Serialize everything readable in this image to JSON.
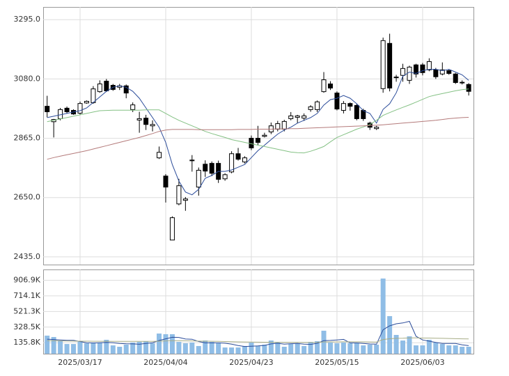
{
  "chart_data": [
    {
      "type": "candlestick",
      "open": [
        2981,
        2925,
        2936,
        2974,
        2966,
        2956,
        2993,
        2994,
        3034,
        3072,
        3057,
        3050,
        3055,
        2969,
        2931,
        2938,
        2910,
        2794,
        2728,
        2496,
        2627,
        2640,
        2786,
        2688,
        2771,
        2774,
        2774,
        2718,
        2743,
        2809,
        2779,
        2865,
        2865,
        2872,
        2888,
        2898,
        2898,
        2936,
        2941,
        2938,
        2969,
        2969,
        3034,
        3062,
        3029,
        2966,
        2991,
        2984,
        2966,
        2920,
        2900,
        3045,
        3209,
        3085,
        3093,
        3075,
        3131,
        3131,
        3113,
        3113,
        3098,
        3110,
        3098,
        3068,
        3060
      ],
      "high": [
        3019,
        2935,
        2975,
        2980,
        2970,
        2998,
        3002,
        3054,
        3075,
        3080,
        3062,
        3062,
        3060,
        2995,
        2961,
        2950,
        2930,
        2835,
        2735,
        2582,
        2718,
        2652,
        2804,
        2759,
        2785,
        2781,
        2784,
        2738,
        2818,
        2830,
        2800,
        2875,
        2910,
        2885,
        2922,
        2928,
        2932,
        2960,
        2950,
        2955,
        2985,
        3002,
        3105,
        3072,
        3035,
        3000,
        2995,
        2990,
        2972,
        2925,
        2910,
        3230,
        3244,
        3095,
        3135,
        3128,
        3135,
        3138,
        3155,
        3120,
        3140,
        3115,
        3102,
        3075,
        3065
      ],
      "low": [
        2941,
        2868,
        2930,
        2955,
        2950,
        2950,
        2990,
        2990,
        3030,
        3033,
        3037,
        3040,
        3010,
        2960,
        2885,
        2895,
        2890,
        2790,
        2632,
        2496,
        2622,
        2602,
        2744,
        2657,
        2725,
        2728,
        2703,
        2711,
        2738,
        2784,
        2774,
        2822,
        2840,
        2868,
        2880,
        2890,
        2890,
        2930,
        2920,
        2928,
        2961,
        2960,
        3030,
        3040,
        2966,
        2955,
        2965,
        2930,
        2928,
        2895,
        2895,
        3030,
        3035,
        3070,
        3070,
        3062,
        3085,
        3093,
        3108,
        3080,
        3093,
        3095,
        3062,
        3060,
        3020
      ],
      "close": [
        2961,
        2933,
        2969,
        2961,
        2953,
        2991,
        2999,
        3044,
        3062,
        3037,
        3042,
        3055,
        3029,
        2986,
        2936,
        2915,
        2915,
        2814,
        2688,
        2577,
        2693,
        2645,
        2784,
        2749,
        2746,
        2738,
        2716,
        2733,
        2809,
        2789,
        2794,
        2830,
        2850,
        2876,
        2910,
        2918,
        2926,
        2946,
        2946,
        2946,
        2979,
        2997,
        3077,
        3047,
        2971,
        2991,
        2981,
        2936,
        2936,
        2905,
        2905,
        3219,
        3047,
        3087,
        3118,
        3123,
        3098,
        3103,
        3143,
        3088,
        3113,
        3100,
        3067,
        3067,
        3035
      ],
      "up_color": "#ffffff",
      "down_color": "#000000",
      "series": [
        {
          "color": "#2b4c9a",
          "values": [
            2940,
            2945,
            2950,
            2955,
            2960,
            2965,
            2975,
            2995,
            3015,
            3035,
            3050,
            3055,
            3050,
            3035,
            3010,
            2975,
            2940,
            2905,
            2850,
            2770,
            2710,
            2670,
            2660,
            2680,
            2720,
            2730,
            2745,
            2745,
            2750,
            2760,
            2770,
            2795,
            2820,
            2840,
            2860,
            2880,
            2895,
            2905,
            2920,
            2930,
            2940,
            2955,
            2985,
            3005,
            3010,
            3020,
            3010,
            2990,
            2965,
            2955,
            2920,
            2970,
            2990,
            3030,
            3090,
            3105,
            3100,
            3110,
            3115,
            3115,
            3110,
            3115,
            3105,
            3095,
            3075
          ]
        },
        {
          "color": "#84c184",
          "values": [
            2925,
            2930,
            2935,
            2940,
            2945,
            2950,
            2955,
            2960,
            2965,
            2966,
            2967,
            2967,
            2967,
            2967,
            2967,
            2968,
            2968,
            2968,
            2955,
            2942,
            2930,
            2920,
            2910,
            2900,
            2890,
            2882,
            2875,
            2868,
            2860,
            2855,
            2850,
            2845,
            2840,
            2835,
            2830,
            2825,
            2820,
            2815,
            2813,
            2812,
            2818,
            2826,
            2835,
            2852,
            2868,
            2878,
            2888,
            2898,
            2906,
            2915,
            2930,
            2948,
            2958,
            2968,
            2977,
            2986,
            2996,
            3006,
            3016,
            3022,
            3027,
            3032,
            3037,
            3041,
            3044
          ]
        },
        {
          "color": "#b47a7a",
          "values": [
            2789,
            2795,
            2800,
            2805,
            2810,
            2815,
            2820,
            2826,
            2832,
            2838,
            2844,
            2850,
            2856,
            2862,
            2868,
            2875,
            2882,
            2890,
            2895,
            2897,
            2897,
            2897,
            2897,
            2896,
            2896,
            2896,
            2896,
            2896,
            2896,
            2897,
            2897,
            2897,
            2898,
            2898,
            2898,
            2899,
            2899,
            2900,
            2900,
            2901,
            2902,
            2903,
            2904,
            2905,
            2906,
            2907,
            2908,
            2909,
            2910,
            2911,
            2912,
            2914,
            2916,
            2918,
            2920,
            2922,
            2924,
            2926,
            2928,
            2930,
            2933,
            2936,
            2938,
            2940,
            2941
          ]
        }
      ],
      "ylim": [
        2407,
        3341
      ],
      "yticks": [
        {
          "value": 2435,
          "label": "2435.0"
        },
        {
          "value": 2650,
          "label": "2650.0"
        },
        {
          "value": 2865,
          "label": "2865.0"
        },
        {
          "value": 3080,
          "label": "3080.0"
        },
        {
          "value": 3295,
          "label": "3295.0"
        }
      ],
      "grid": true
    },
    {
      "type": "bar",
      "categories": [
        null,
        null,
        null,
        null,
        null,
        "2025/03/17",
        null,
        null,
        null,
        null,
        null,
        null,
        null,
        null,
        null,
        null,
        null,
        null,
        "2025/04/04",
        null,
        null,
        null,
        null,
        null,
        null,
        null,
        null,
        null,
        null,
        null,
        null,
        "2025/04/23",
        null,
        null,
        null,
        null,
        null,
        null,
        null,
        null,
        null,
        null,
        null,
        null,
        "2025/05/15",
        null,
        null,
        null,
        null,
        null,
        null,
        null,
        null,
        null,
        null,
        null,
        null,
        "2025/06/03",
        null,
        null,
        null,
        null,
        null,
        null,
        null
      ],
      "values": [
        223000,
        206000,
        155000,
        120000,
        120000,
        155000,
        129000,
        138000,
        138000,
        172000,
        103000,
        86000,
        112000,
        138000,
        146000,
        155000,
        129000,
        249000,
        241000,
        241000,
        146000,
        129000,
        138000,
        95000,
        163000,
        146000,
        129000,
        77000,
        77000,
        77000,
        95000,
        138000,
        95000,
        112000,
        163000,
        138000,
        86000,
        120000,
        129000,
        95000,
        146000,
        155000,
        284000,
        138000,
        129000,
        138000,
        129000,
        129000,
        103000,
        112000,
        112000,
        928000,
        464000,
        232000,
        163000,
        215000,
        103000,
        103000,
        172000,
        138000,
        120000,
        103000,
        103000,
        86000,
        86000
      ],
      "color": "#8fbde6",
      "series": [
        {
          "color": "#2b4c9a",
          "values": [
            180000,
            175000,
            170000,
            165000,
            165000,
            150000,
            136000,
            132000,
            136000,
            140000,
            136000,
            127000,
            123000,
            121000,
            117000,
            126000,
            136000,
            163000,
            184000,
            203000,
            201000,
            181000,
            179000,
            150000,
            134000,
            134000,
            134000,
            130000,
            118000,
            101000,
            89000,
            93000,
            96000,
            103000,
            121000,
            129000,
            119000,
            124000,
            127000,
            118000,
            115000,
            129000,
            162000,
            164000,
            170000,
            177000,
            134000,
            133000,
            126000,
            120000,
            118000,
            296000,
            344000,
            370000,
            380000,
            400000,
            215000,
            170000,
            155000,
            140000,
            127000,
            127000,
            127000,
            110000,
            100000
          ]
        },
        {
          "color": "#a7ad86",
          "values": [
            160000,
            160000,
            158000,
            157000,
            156000,
            155000,
            155000,
            154000,
            154000,
            154000,
            153000,
            152000,
            152000,
            152000,
            152000,
            153000,
            153000,
            155000,
            158000,
            160000,
            160000,
            159000,
            158000,
            156000,
            155000,
            154000,
            152000,
            150000,
            148000,
            146000,
            145000,
            144000,
            143000,
            142000,
            142000,
            142000,
            141000,
            141000,
            141000,
            140000,
            140000,
            141000,
            145000,
            146000,
            146000,
            147000,
            147000,
            147000,
            146000,
            145000,
            144000,
            175000,
            185000,
            190000,
            192000,
            196000,
            195000,
            193000,
            193000,
            192000,
            190000,
            188000,
            186000,
            184000,
            182000
          ]
        }
      ],
      "ylim": [
        0,
        1040000
      ],
      "yticks": [
        {
          "value": 135800,
          "label": "135.8K"
        },
        {
          "value": 328500,
          "label": "328.5K"
        },
        {
          "value": 521300,
          "label": "521.3K"
        },
        {
          "value": 714100,
          "label": "714.1K"
        },
        {
          "value": 906900,
          "label": "906.9K"
        }
      ],
      "grid": true
    }
  ]
}
